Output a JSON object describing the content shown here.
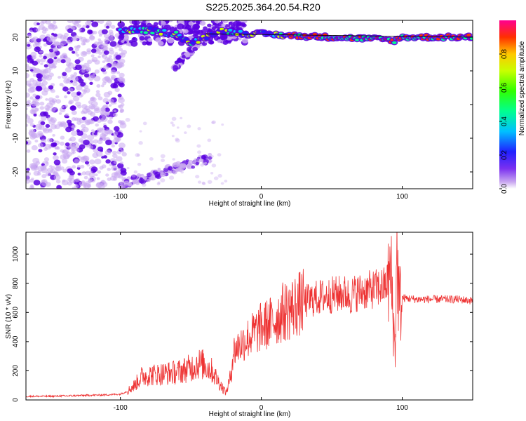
{
  "title": "S225.2025.364.20.54.R20",
  "colors": {
    "snr_line": "#ee3333",
    "speckle_light": "#c9a8f0",
    "speckle_dark": "#5a00e0",
    "frame": "#000000"
  },
  "chart_data": [
    {
      "type": "heatmap",
      "xlabel": "Height of straight line (km)",
      "ylabel": "Frequency (Hz)",
      "xlim": [
        -167,
        150
      ],
      "ylim": [
        -25,
        25
      ],
      "xticks": [
        -100,
        0,
        100
      ],
      "xtick_labels": [
        "-100",
        "0",
        "100"
      ],
      "yticks": [
        20,
        10,
        0,
        -10,
        -20
      ],
      "ytick_labels": [
        "20",
        "10",
        "0",
        "-10",
        "-20"
      ],
      "ridge": {
        "description_x": [
          -100,
          -80,
          -60,
          -50,
          -30,
          -10,
          0,
          20,
          50,
          80,
          95,
          100,
          120,
          150
        ],
        "description_y": [
          22,
          22,
          21,
          18,
          22,
          21,
          21,
          20.5,
          20,
          19.5,
          19,
          20,
          20,
          20
        ]
      },
      "colorbar": {
        "label": "Normalized spectral amplitude",
        "ticks": [
          0,
          0.2,
          0.4,
          0.6,
          0.8
        ],
        "tick_labels": [
          "0.0",
          "0.2",
          "0.4",
          "0.6",
          "0.8"
        ],
        "range": [
          0,
          1
        ]
      }
    },
    {
      "type": "line",
      "xlabel": "Height of straight line (km)",
      "ylabel": "SNR (10 * v/v)",
      "xlim": [
        -167,
        150
      ],
      "ylim": [
        0,
        1150
      ],
      "xticks": [
        -100,
        0,
        100
      ],
      "xtick_labels": [
        "-100",
        "0",
        "100"
      ],
      "yticks": [
        0,
        200,
        400,
        600,
        800,
        1000
      ],
      "ytick_labels": [
        "0",
        "200",
        "400",
        "600",
        "800",
        "1000"
      ],
      "series": [
        {
          "x": [
            -167,
            -150,
            -130,
            -110,
            -100,
            -95,
            -90,
            -85,
            -80,
            -70,
            -60,
            -50,
            -45,
            -40,
            -35,
            -30,
            -25,
            -22,
            -20,
            -15,
            -10,
            -5,
            0,
            5,
            10,
            15,
            20,
            25,
            30,
            40,
            50,
            60,
            63,
            65,
            70,
            80,
            88,
            92,
            95,
            96,
            98,
            100,
            110,
            120,
            130,
            140,
            150
          ],
          "values": [
            25,
            25,
            30,
            35,
            40,
            60,
            100,
            160,
            170,
            180,
            190,
            220,
            250,
            240,
            200,
            120,
            50,
            150,
            330,
            380,
            420,
            460,
            500,
            520,
            550,
            600,
            620,
            650,
            670,
            700,
            720,
            730,
            700,
            730,
            740,
            760,
            780,
            850,
            300,
            1000,
            650,
            700,
            690,
            690,
            690,
            690,
            680
          ]
        }
      ]
    }
  ]
}
